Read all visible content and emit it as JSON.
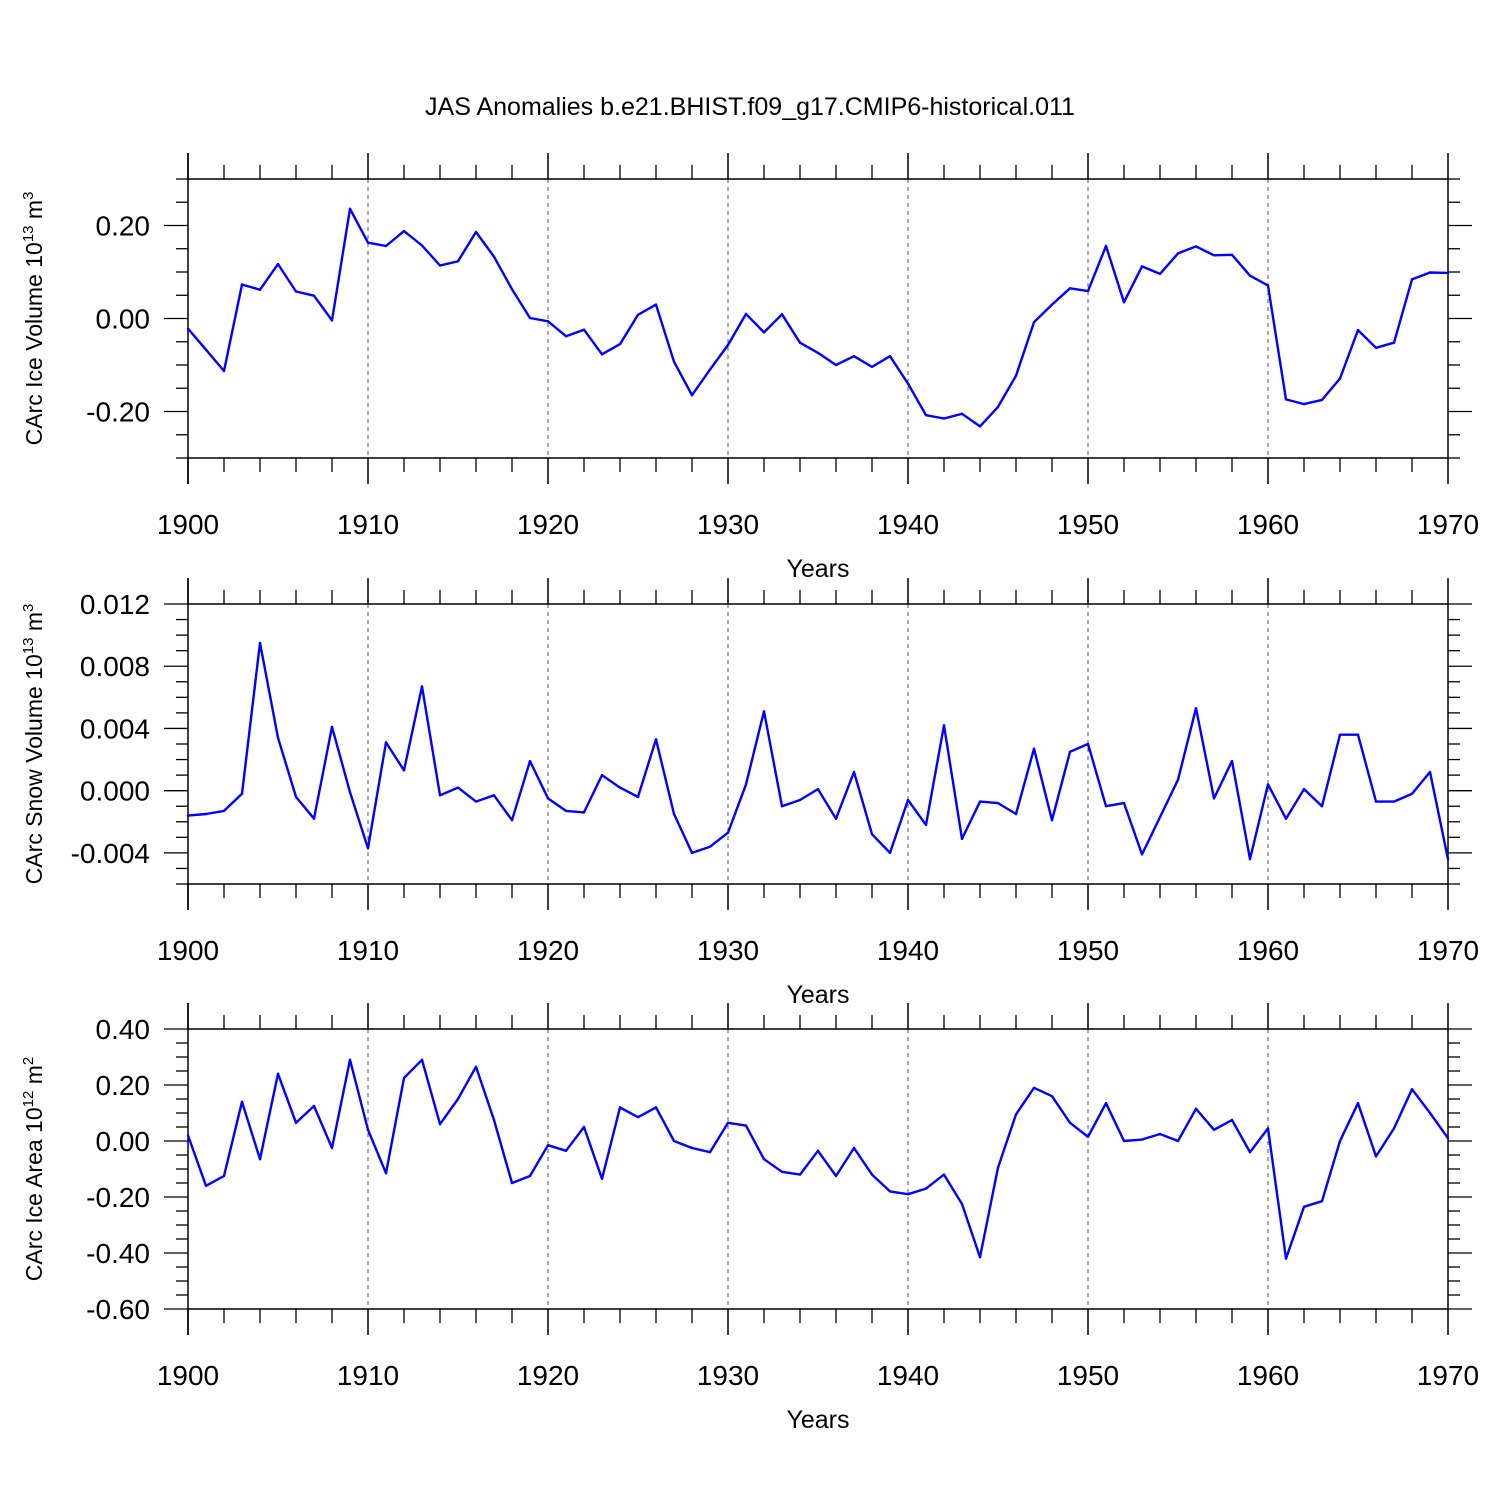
{
  "title": "JAS Anomalies b.e21.BHIST.f09_g17.CMIP6-historical.011",
  "chart_data": [
    {
      "type": "line",
      "ylabel_main": "CArc Ice Volume 10",
      "ylabel_exp": "13",
      "ylabel_unit": " m",
      "ylabel_unit_exp": "3",
      "xlabel": "Years",
      "xlim": [
        1900,
        1970
      ],
      "ylim": [
        -0.3,
        0.3
      ],
      "xticks": [
        1900,
        1910,
        1920,
        1930,
        1940,
        1950,
        1960,
        1970
      ],
      "xtick_labels": [
        "1900",
        "1910",
        "1920",
        "1930",
        "1940",
        "1950",
        "1960",
        "1970"
      ],
      "yticks": [
        -0.2,
        0.0,
        0.2
      ],
      "ytick_labels": [
        "-0.20",
        "0.00",
        "0.20"
      ],
      "grid": "dashed vertical",
      "series": [
        {
          "name": "Ice Volume",
          "color": "#0000ff",
          "x": [
            1900,
            1901,
            1902,
            1903,
            1904,
            1905,
            1906,
            1907,
            1908,
            1909,
            1910,
            1911,
            1912,
            1913,
            1914,
            1915,
            1916,
            1917,
            1918,
            1919,
            1920,
            1921,
            1922,
            1923,
            1924,
            1925,
            1926,
            1927,
            1928,
            1929,
            1930,
            1931,
            1932,
            1933,
            1934,
            1935,
            1936,
            1937,
            1938,
            1939,
            1940,
            1941,
            1942,
            1943,
            1944,
            1945,
            1946,
            1947,
            1948,
            1949,
            1950,
            1951,
            1952,
            1953,
            1954,
            1955,
            1956,
            1957,
            1958,
            1959,
            1960,
            1961,
            1962,
            1963,
            1964,
            1965,
            1966,
            1967,
            1968,
            1969,
            1970
          ],
          "values": [
            -0.022,
            -0.067,
            -0.113,
            0.073,
            0.062,
            0.117,
            0.058,
            0.049,
            -0.004,
            0.236,
            0.163,
            0.156,
            0.188,
            0.157,
            0.114,
            0.123,
            0.186,
            0.133,
            0.063,
            0.001,
            -0.006,
            -0.038,
            -0.024,
            -0.077,
            -0.055,
            0.008,
            0.03,
            -0.093,
            -0.165,
            -0.11,
            -0.057,
            0.01,
            -0.03,
            0.009,
            -0.052,
            -0.074,
            -0.1,
            -0.081,
            -0.104,
            -0.081,
            -0.14,
            -0.208,
            -0.215,
            -0.205,
            -0.232,
            -0.19,
            -0.123,
            -0.008,
            0.03,
            0.065,
            0.059,
            0.156,
            0.035,
            0.112,
            0.096,
            0.14,
            0.155,
            0.136,
            0.137,
            0.092,
            0.071,
            -0.174,
            -0.184,
            -0.175,
            -0.129,
            -0.025,
            -0.063,
            -0.052,
            0.084,
            0.099,
            0.098
          ]
        }
      ]
    },
    {
      "type": "line",
      "ylabel_main": "CArc Snow Volume 10",
      "ylabel_exp": "13",
      "ylabel_unit": " m",
      "ylabel_unit_exp": "3",
      "xlabel": "Years",
      "xlim": [
        1900,
        1970
      ],
      "ylim": [
        -0.006,
        0.012
      ],
      "xticks": [
        1900,
        1910,
        1920,
        1930,
        1940,
        1950,
        1960,
        1970
      ],
      "xtick_labels": [
        "1900",
        "1910",
        "1920",
        "1930",
        "1940",
        "1950",
        "1960",
        "1970"
      ],
      "yticks": [
        -0.004,
        0.0,
        0.004,
        0.008,
        0.012
      ],
      "ytick_labels": [
        "-0.004",
        "0.000",
        "0.004",
        "0.008",
        "0.012"
      ],
      "grid": "dashed vertical",
      "series": [
        {
          "name": "Snow Volume",
          "color": "#0000ff",
          "x": [
            1900,
            1901,
            1902,
            1903,
            1904,
            1905,
            1906,
            1907,
            1908,
            1909,
            1910,
            1911,
            1912,
            1913,
            1914,
            1915,
            1916,
            1917,
            1918,
            1919,
            1920,
            1921,
            1922,
            1923,
            1924,
            1925,
            1926,
            1927,
            1928,
            1929,
            1930,
            1931,
            1932,
            1933,
            1934,
            1935,
            1936,
            1937,
            1938,
            1939,
            1940,
            1941,
            1942,
            1943,
            1944,
            1945,
            1946,
            1947,
            1948,
            1949,
            1950,
            1951,
            1952,
            1953,
            1954,
            1955,
            1956,
            1957,
            1958,
            1959,
            1960,
            1961,
            1962,
            1963,
            1964,
            1965,
            1966,
            1967,
            1968,
            1969,
            1970
          ],
          "values": [
            -0.0016,
            -0.0015,
            -0.0013,
            -0.0002,
            0.0095,
            0.0034,
            -0.0004,
            -0.0018,
            0.0041,
            -0.0001,
            -0.0037,
            0.0031,
            0.0013,
            0.0067,
            -0.0003,
            0.0002,
            -0.0007,
            -0.0003,
            -0.0019,
            0.0019,
            -0.0005,
            -0.0013,
            -0.0014,
            0.001,
            0.0002,
            -0.0004,
            0.0033,
            -0.0015,
            -0.004,
            -0.0036,
            -0.0027,
            0.0004,
            0.0051,
            -0.001,
            -0.0006,
            0.0001,
            -0.0018,
            0.0012,
            -0.0028,
            -0.004,
            -0.0006,
            -0.0022,
            0.0042,
            -0.0031,
            -0.0007,
            -0.0008,
            -0.0015,
            0.0027,
            -0.0019,
            0.0025,
            0.003,
            -0.001,
            -0.0008,
            -0.0041,
            -0.0017,
            0.0007,
            0.0053,
            -0.0005,
            0.0019,
            -0.0044,
            0.0004,
            -0.0018,
            0.0001,
            -0.001,
            0.0036,
            0.0036,
            -0.0007,
            -0.0007,
            -0.0002,
            0.0012,
            -0.0044
          ]
        }
      ]
    },
    {
      "type": "line",
      "ylabel_main": "CArc Ice Area 10",
      "ylabel_exp": "12",
      "ylabel_unit": " m",
      "ylabel_unit_exp": "2",
      "xlabel": "Years",
      "xlim": [
        1900,
        1970
      ],
      "ylim": [
        -0.6,
        0.4
      ],
      "xticks": [
        1900,
        1910,
        1920,
        1930,
        1940,
        1950,
        1960,
        1970
      ],
      "xtick_labels": [
        "1900",
        "1910",
        "1920",
        "1930",
        "1940",
        "1950",
        "1960",
        "1970"
      ],
      "yticks": [
        -0.6,
        -0.4,
        -0.2,
        0.0,
        0.2,
        0.4
      ],
      "ytick_labels": [
        "-0.60",
        "-0.40",
        "-0.20",
        "0.00",
        "0.20",
        "0.40"
      ],
      "grid": "dashed vertical",
      "series": [
        {
          "name": "Ice Area",
          "color": "#0000ff",
          "x": [
            1900,
            1901,
            1902,
            1903,
            1904,
            1905,
            1906,
            1907,
            1908,
            1909,
            1910,
            1911,
            1912,
            1913,
            1914,
            1915,
            1916,
            1917,
            1918,
            1919,
            1920,
            1921,
            1922,
            1923,
            1924,
            1925,
            1926,
            1927,
            1928,
            1929,
            1930,
            1931,
            1932,
            1933,
            1934,
            1935,
            1936,
            1937,
            1938,
            1939,
            1940,
            1941,
            1942,
            1943,
            1944,
            1945,
            1946,
            1947,
            1948,
            1949,
            1950,
            1951,
            1952,
            1953,
            1954,
            1955,
            1956,
            1957,
            1958,
            1959,
            1960,
            1961,
            1962,
            1963,
            1964,
            1965,
            1966,
            1967,
            1968,
            1969,
            1970
          ],
          "values": [
            0.02,
            -0.16,
            -0.125,
            0.14,
            -0.065,
            0.24,
            0.065,
            0.125,
            -0.025,
            0.29,
            0.04,
            -0.115,
            0.225,
            0.29,
            0.06,
            0.15,
            0.265,
            0.075,
            -0.15,
            -0.125,
            -0.015,
            -0.035,
            0.05,
            -0.135,
            0.12,
            0.085,
            0.12,
            0.0,
            -0.025,
            -0.04,
            0.065,
            0.055,
            -0.065,
            -0.11,
            -0.12,
            -0.035,
            -0.125,
            -0.025,
            -0.12,
            -0.18,
            -0.19,
            -0.17,
            -0.12,
            -0.225,
            -0.415,
            -0.095,
            0.095,
            0.19,
            0.16,
            0.065,
            0.015,
            0.135,
            0.0,
            0.005,
            0.025,
            0.0,
            0.115,
            0.04,
            0.075,
            -0.04,
            0.045,
            -0.42,
            -0.235,
            -0.215,
            0.0,
            0.135,
            -0.055,
            0.045,
            0.185,
            0.1,
            0.01
          ]
        }
      ]
    }
  ]
}
